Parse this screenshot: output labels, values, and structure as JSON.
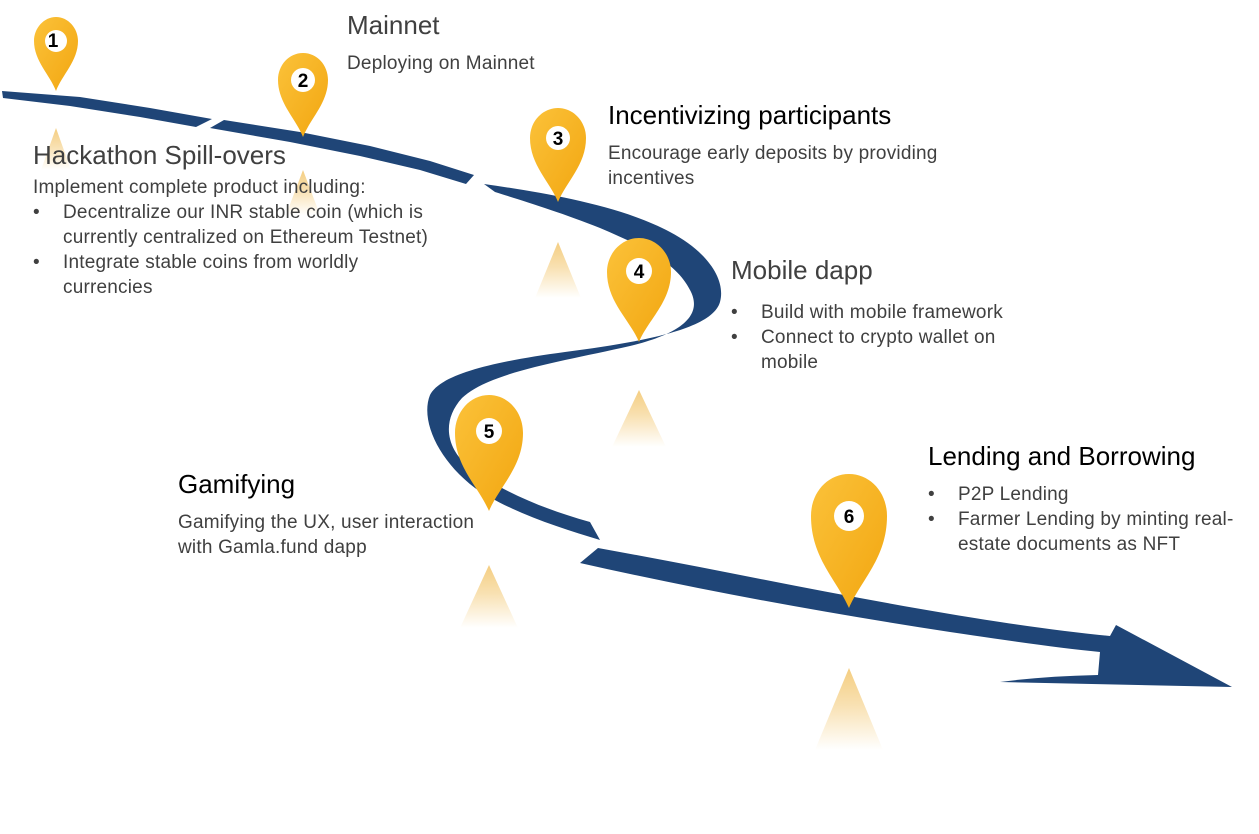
{
  "milestones": [
    {
      "number": "1",
      "title": "Hackathon Spill-overs",
      "intro": "Implement  complete product including:",
      "bullets": [
        "Decentralize our INR stable coin (which is currently centralized on Ethereum Testnet)",
        "Integrate stable coins from worldly currencies"
      ]
    },
    {
      "number": "2",
      "title": "Mainnet",
      "description": "Deploying on Mainnet"
    },
    {
      "number": "3",
      "title": "Incentivizing participants",
      "description": "Encourage early deposits by providing incentives"
    },
    {
      "number": "4",
      "title": "Mobile dapp",
      "bullets": [
        "Build with mobile framework",
        "Connect to crypto wallet on mobile"
      ]
    },
    {
      "number": "5",
      "title": "Gamifying",
      "description": "Gamifying the UX, user interaction with Gamla.fund  dapp"
    },
    {
      "number": "6",
      "title": "Lending and Borrowing",
      "bullets": [
        "P2P Lending",
        "Farmer Lending by minting real-estate documents as NFT"
      ]
    }
  ],
  "bullet_symbol": "•",
  "colors": {
    "road": "#1f4577",
    "pin": "#f8b320",
    "pin_inner": "#ffffff",
    "beam": "#f3c873",
    "title_text": "#000000",
    "body_text": "#404040"
  },
  "icons": {
    "pin": "map-pin-icon",
    "beam": "light-beam"
  }
}
